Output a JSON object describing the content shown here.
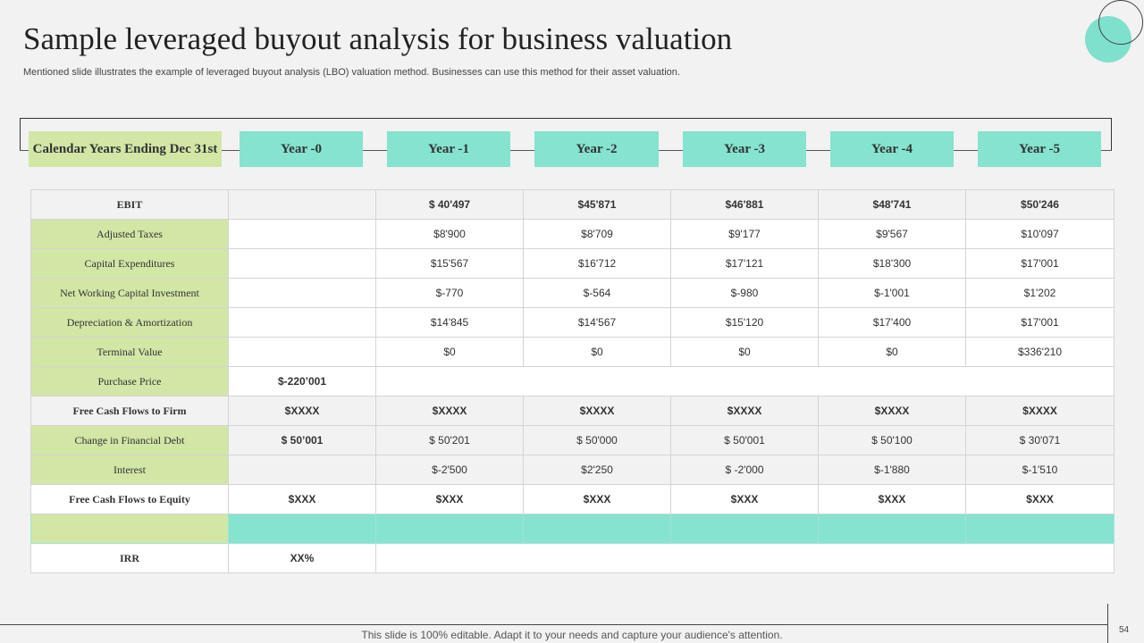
{
  "slide": {
    "title": "Sample leveraged buyout analysis for business valuation",
    "subtitle": "Mentioned slide illustrates the example of leveraged buyout analysis (LBO) valuation method. Businesses can use this method for their asset valuation.",
    "footer": "This slide is 100% editable. Adapt it to your needs and capture your audience's attention.",
    "page_number": "54"
  },
  "header": {
    "label": "Calendar Years Ending Dec 31st",
    "years": [
      "Year -0",
      "Year -1",
      "Year -2",
      "Year -3",
      "Year -4",
      "Year -5"
    ]
  },
  "rows": {
    "ebit": {
      "label": "EBIT",
      "values": [
        "",
        "$ 40'497",
        "$45'871",
        "$46'881",
        "$48'741",
        "$50'246"
      ]
    },
    "adjusted_taxes": {
      "label": "Adjusted Taxes",
      "values": [
        "",
        "$8'900",
        "$8'709",
        "$9'177",
        "$9'567",
        "$10'097"
      ]
    },
    "capex": {
      "label": "Capital Expenditures",
      "values": [
        "",
        "$15'567",
        "$16'712",
        "$17'121",
        "$18'300",
        "$17'001"
      ]
    },
    "nwc": {
      "label": "Net Working Capital Investment",
      "values": [
        "",
        "$-770",
        "$-564",
        "$-980",
        "$-1'001",
        "$1'202"
      ]
    },
    "da": {
      "label": "Depreciation & Amortization",
      "values": [
        "",
        "$14'845",
        "$14'567",
        "$15'120",
        "$17'400",
        "$17'001"
      ]
    },
    "terminal_value": {
      "label": "Terminal Value",
      "values": [
        "",
        "$0",
        "$0",
        "$0",
        "$0",
        "$336'210"
      ]
    },
    "purchase_price": {
      "label": "Purchase Price",
      "value": "$-220’001"
    },
    "fcff": {
      "label": "Free Cash Flows to Firm",
      "values": [
        "$XXXX",
        "$XXXX",
        "$XXXX",
        "$XXXX",
        "$XXXX",
        "$XXXX"
      ]
    },
    "change_debt": {
      "label": "Change in Financial Debt",
      "values": [
        "$ 50’001",
        "$ 50'201",
        "$ 50'000",
        "$ 50'001",
        "$ 50'100",
        "$ 30'071"
      ]
    },
    "interest": {
      "label": "Interest",
      "values": [
        "",
        "$-2'500",
        "$2'250",
        "$ -2'000",
        "$-1'880",
        "$-1'510"
      ]
    },
    "fcfe": {
      "label": "Free Cash Flows to Equity",
      "values": [
        "$XXX",
        "$XXX",
        "$XXX",
        "$XXX",
        "$XXX",
        "$XXX"
      ]
    },
    "irr": {
      "label": "IRR",
      "value": "XX%"
    }
  },
  "colors": {
    "teal": "#85e3cf",
    "green": "#d2e6a6"
  }
}
